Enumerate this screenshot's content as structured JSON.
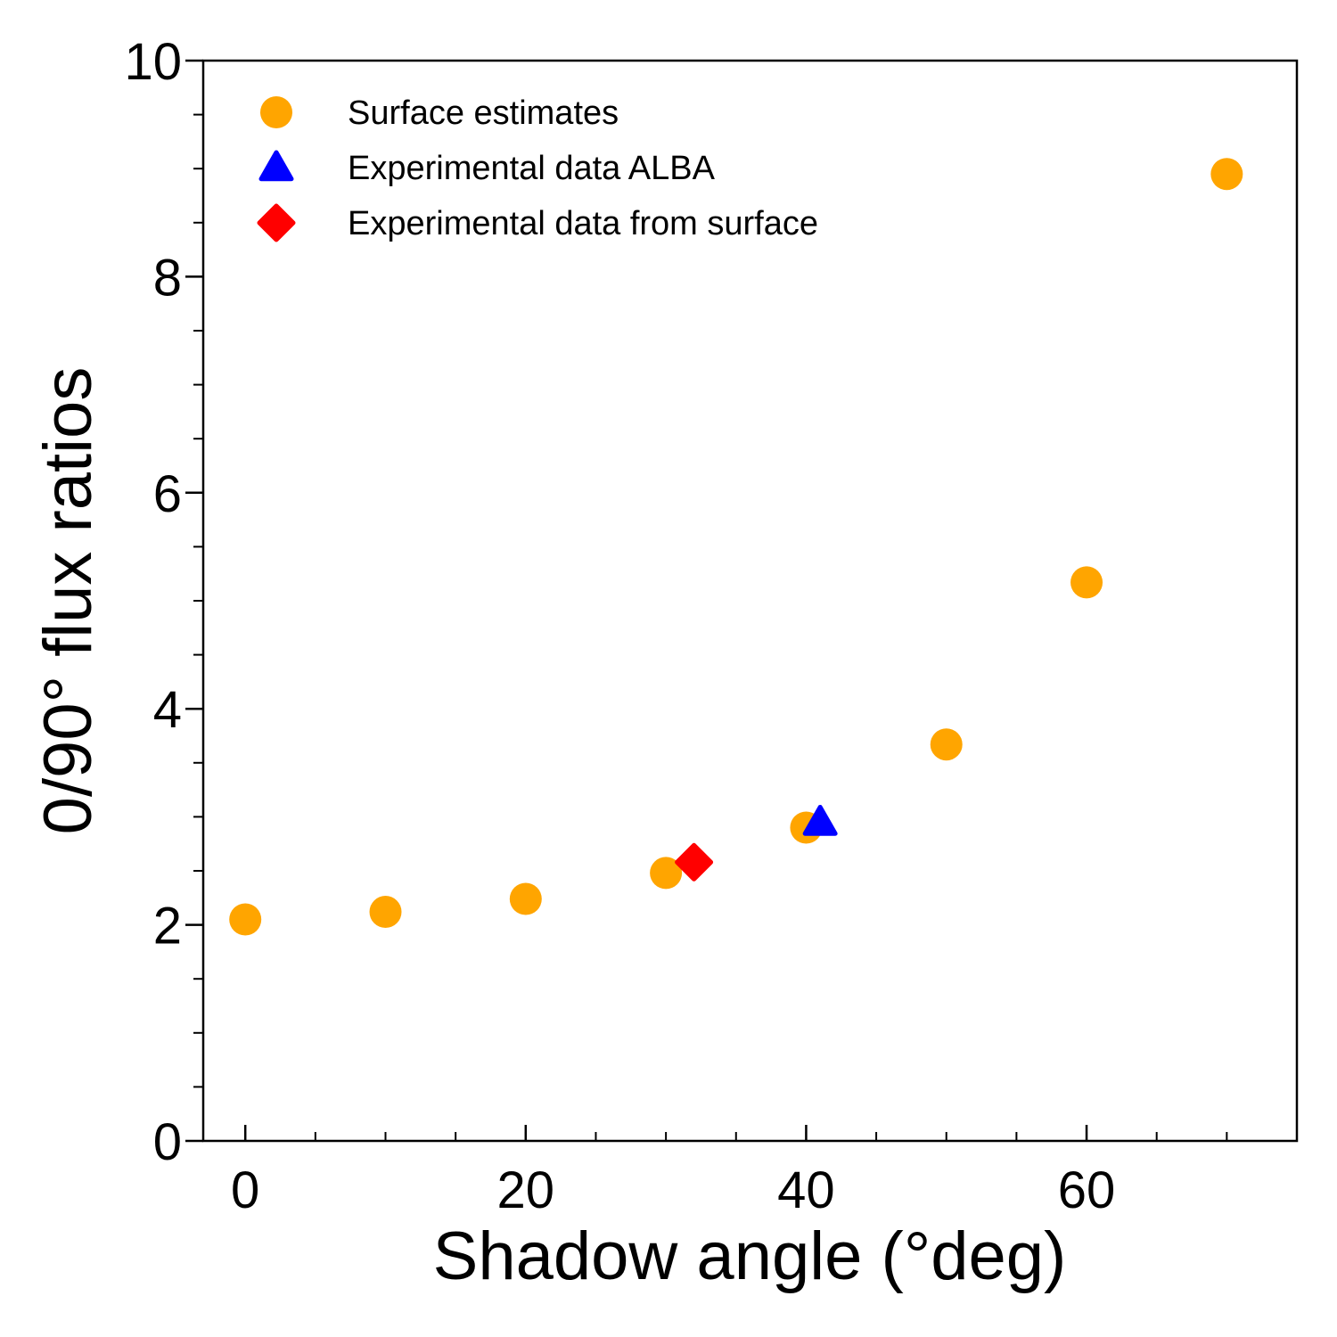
{
  "chart_data": {
    "type": "scatter",
    "xlabel": "Shadow angle (°deg)",
    "ylabel": "0/90° flux ratios",
    "xlim": [
      -3,
      75
    ],
    "ylim": [
      0,
      10
    ],
    "x_ticks": [
      0,
      20,
      40,
      60
    ],
    "x_minor_ticks": [
      0,
      5,
      10,
      15,
      20,
      25,
      30,
      35,
      40,
      45,
      50,
      55,
      60,
      65,
      70
    ],
    "y_ticks": [
      0,
      2,
      4,
      6,
      8,
      10
    ],
    "y_minor_ticks": [
      0.5,
      1,
      1.5,
      2.5,
      3,
      3.5,
      4.5,
      5,
      5.5,
      6.5,
      7,
      7.5,
      8.5,
      9,
      9.5
    ],
    "grid": false,
    "legend_position": "top-left",
    "series": [
      {
        "name": "Surface estimates",
        "marker": "circle",
        "color": "#FFA500",
        "points": [
          {
            "x": 0,
            "y": 2.05
          },
          {
            "x": 10,
            "y": 2.12
          },
          {
            "x": 20,
            "y": 2.24
          },
          {
            "x": 30,
            "y": 2.48
          },
          {
            "x": 40,
            "y": 2.9
          },
          {
            "x": 50,
            "y": 3.67
          },
          {
            "x": 60,
            "y": 5.17
          },
          {
            "x": 70,
            "y": 8.95
          }
        ]
      },
      {
        "name": "Experimental data ALBA",
        "marker": "triangle",
        "color": "#0000FF",
        "points": [
          {
            "x": 41,
            "y": 2.95
          }
        ]
      },
      {
        "name": "Experimental data from surface",
        "marker": "diamond",
        "color": "#FF0000",
        "points": [
          {
            "x": 32,
            "y": 2.58
          }
        ]
      }
    ]
  }
}
